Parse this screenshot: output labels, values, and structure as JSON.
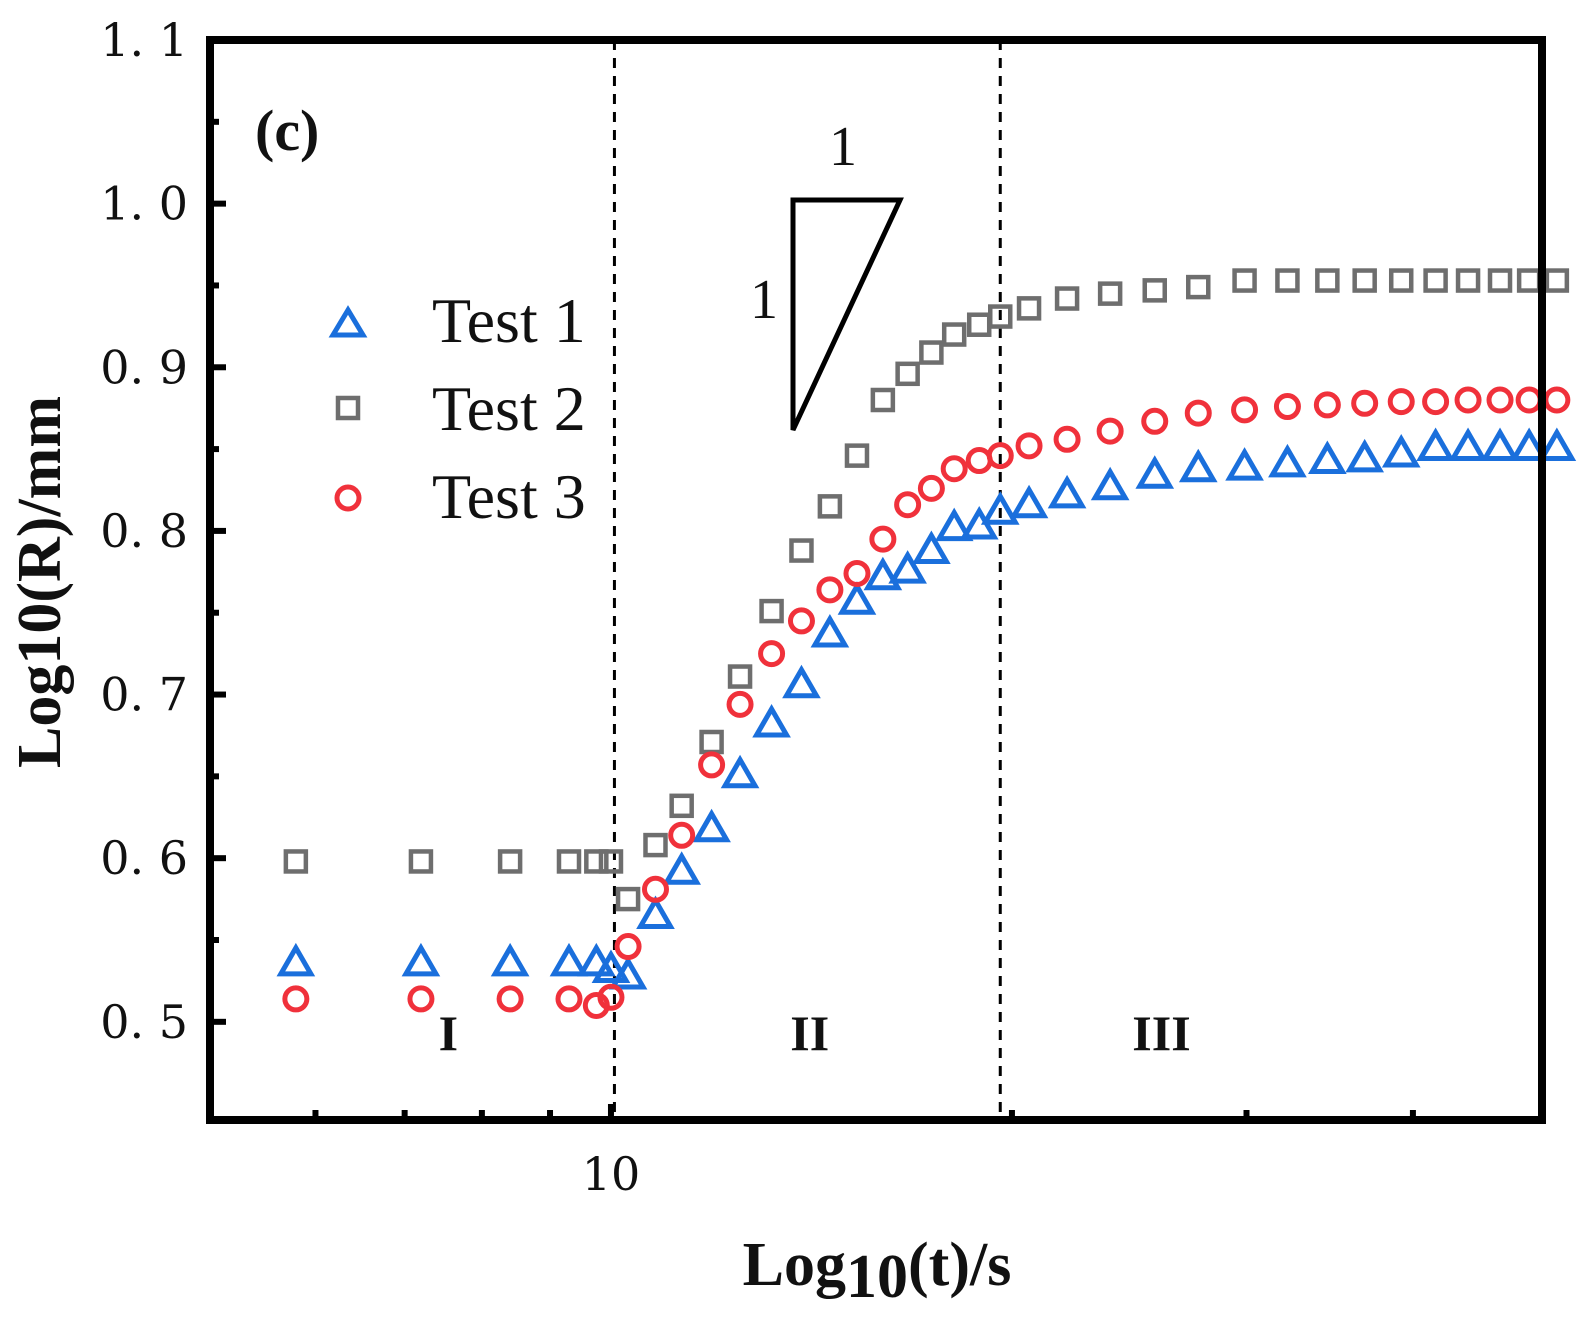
{
  "chart_data": {
    "type": "scatter",
    "panel_label": "(c)",
    "xlabel": {
      "prefix": "Log",
      "sub": "10",
      "suffix": "(t)/s"
    },
    "ylabel": "Log10(R)/mm",
    "x_scale": "log",
    "xlim": [
      5.0,
      50.0
    ],
    "ylim": [
      0.44,
      1.1
    ],
    "x_tick_labels": [
      {
        "value": 10,
        "label": "10"
      }
    ],
    "y_tick_labels": [
      {
        "value": 0.5,
        "label": "0. 5"
      },
      {
        "value": 0.6,
        "label": "0. 6"
      },
      {
        "value": 0.7,
        "label": "0. 7"
      },
      {
        "value": 0.8,
        "label": "0. 8"
      },
      {
        "value": 0.9,
        "label": "0. 9"
      },
      {
        "value": 1.0,
        "label": "1. 0"
      },
      {
        "value": 1.1,
        "label": "1. 1"
      }
    ],
    "region_boundaries": [
      10.06,
      19.6
    ],
    "regions": [
      {
        "label": "I",
        "x": 7.55
      },
      {
        "label": "II",
        "x": 14.1
      },
      {
        "label": "III",
        "x": 25.9
      }
    ],
    "slope_marker": {
      "horizontal_label": "1",
      "vertical_label": "1"
    },
    "legend": {
      "position": "upper-left"
    },
    "series": [
      {
        "name": "Test 1",
        "marker": "triangle",
        "color": "#1a6fdc",
        "x": [
          5.8,
          7.2,
          8.4,
          9.3,
          9.75,
          10.0,
          10.3,
          10.8,
          11.3,
          11.9,
          12.5,
          13.2,
          13.9,
          14.6,
          15.3,
          16.0,
          16.7,
          17.4,
          18.1,
          18.9,
          19.6,
          20.6,
          22.0,
          23.7,
          25.6,
          27.6,
          29.9,
          32.2,
          34.5,
          36.8,
          39.2,
          41.6,
          44.0,
          46.5,
          48.9,
          51.3
        ],
        "y": [
          0.536,
          0.536,
          0.536,
          0.536,
          0.536,
          0.532,
          0.528,
          0.565,
          0.592,
          0.618,
          0.651,
          0.682,
          0.706,
          0.737,
          0.757,
          0.772,
          0.776,
          0.788,
          0.802,
          0.803,
          0.812,
          0.816,
          0.822,
          0.827,
          0.834,
          0.838,
          0.839,
          0.841,
          0.843,
          0.844,
          0.847,
          0.851,
          0.851,
          0.851,
          0.851,
          0.851
        ]
      },
      {
        "name": "Test 2",
        "marker": "square",
        "color": "#6e6e6e",
        "x": [
          5.8,
          7.2,
          8.4,
          9.3,
          9.75,
          10.0,
          10.3,
          10.8,
          11.3,
          11.9,
          12.5,
          13.2,
          13.9,
          14.6,
          15.3,
          16.0,
          16.7,
          17.4,
          18.1,
          18.9,
          19.6,
          20.6,
          22.0,
          23.7,
          25.6,
          27.6,
          29.9,
          32.2,
          34.5,
          36.8,
          39.2,
          41.6,
          44.0,
          46.5,
          48.9,
          51.3
        ],
        "y": [
          0.598,
          0.598,
          0.598,
          0.598,
          0.598,
          0.598,
          0.575,
          0.608,
          0.632,
          0.671,
          0.711,
          0.751,
          0.788,
          0.815,
          0.846,
          0.88,
          0.896,
          0.909,
          0.92,
          0.926,
          0.931,
          0.936,
          0.942,
          0.945,
          0.947,
          0.949,
          0.953,
          0.953,
          0.953,
          0.953,
          0.953,
          0.953,
          0.953,
          0.953,
          0.953,
          0.953
        ]
      },
      {
        "name": "Test 3",
        "marker": "circle",
        "color": "#f0313b",
        "x": [
          5.8,
          7.2,
          8.4,
          9.3,
          9.75,
          10.0,
          10.3,
          10.8,
          11.3,
          11.9,
          12.5,
          13.2,
          13.9,
          14.6,
          15.3,
          16.0,
          16.7,
          17.4,
          18.1,
          18.9,
          19.6,
          20.6,
          22.0,
          23.7,
          25.6,
          27.6,
          29.9,
          32.2,
          34.5,
          36.8,
          39.2,
          41.6,
          44.0,
          46.5,
          48.9,
          51.3
        ],
        "y": [
          0.514,
          0.514,
          0.514,
          0.514,
          0.51,
          0.515,
          0.546,
          0.581,
          0.614,
          0.657,
          0.694,
          0.725,
          0.745,
          0.764,
          0.774,
          0.795,
          0.816,
          0.826,
          0.838,
          0.843,
          0.846,
          0.852,
          0.856,
          0.861,
          0.867,
          0.872,
          0.874,
          0.876,
          0.877,
          0.878,
          0.879,
          0.879,
          0.88,
          0.88,
          0.88,
          0.88
        ]
      }
    ]
  }
}
